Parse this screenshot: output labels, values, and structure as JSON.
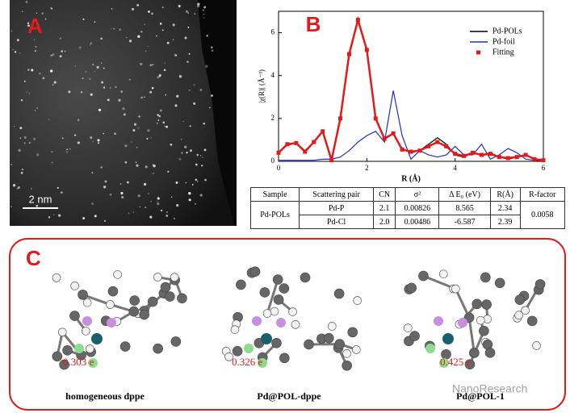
{
  "panel_a": {
    "label": "A",
    "scale_bar": "2 nm"
  },
  "chart_data": {
    "type": "line",
    "label": "B",
    "x_label": "R (Å)",
    "y_label": "|χ(R)| (Å⁻³)",
    "x": [
      0,
      0.2,
      0.4,
      0.6,
      0.8,
      1.0,
      1.2,
      1.4,
      1.6,
      1.8,
      2.0,
      2.2,
      2.4,
      2.6,
      2.8,
      3.0,
      3.2,
      3.4,
      3.6,
      3.8,
      4.0,
      4.2,
      4.4,
      4.6,
      4.8,
      5.0,
      5.2,
      5.4,
      5.6,
      5.8,
      6.0
    ],
    "series": [
      {
        "name": "Pd-POLs",
        "color": "#000000",
        "values": [
          0.4,
          0.75,
          0.85,
          0.5,
          0.9,
          1.4,
          0.1,
          2.0,
          5.0,
          6.6,
          5.2,
          2.0,
          1.1,
          1.3,
          0.6,
          0.4,
          0.5,
          0.8,
          1.1,
          0.8,
          0.3,
          0.2,
          0.4,
          0.3,
          0.4,
          0.2,
          0.1,
          0.2,
          0.3,
          0.1,
          0.05
        ]
      },
      {
        "name": "Pd-foil",
        "color": "#1f2fbf",
        "values": [
          0.05,
          0.05,
          0.05,
          0.05,
          0.05,
          0.1,
          0.1,
          0.2,
          0.5,
          0.9,
          1.2,
          1.4,
          0.9,
          3.3,
          1.2,
          0.1,
          0.5,
          0.3,
          0.2,
          0.3,
          0.7,
          0.3,
          0.3,
          0.8,
          0.1,
          0.3,
          0.6,
          0.4,
          0.1,
          0.05,
          0.02
        ]
      },
      {
        "name": "Fitting",
        "color": "#e31a1a",
        "values": [
          0.4,
          0.8,
          0.85,
          0.45,
          0.9,
          1.4,
          0.05,
          2.0,
          5.0,
          6.6,
          5.2,
          2.0,
          1.05,
          1.3,
          0.55,
          0.45,
          0.5,
          0.7,
          0.9,
          0.7,
          0.35,
          0.25,
          0.4,
          0.3,
          0.35,
          0.2,
          0.15,
          0.2,
          0.3,
          0.1,
          0.05
        ]
      }
    ],
    "xlim": [
      0,
      6
    ],
    "xticks": [
      0,
      2,
      4,
      6
    ],
    "ylim": [
      0,
      7
    ],
    "yticks": [
      0,
      2,
      4,
      6
    ]
  },
  "table": {
    "header": [
      "Sample",
      "Scattering pair",
      "CN",
      "σ²",
      "Δ E₀ (eV)",
      "R(Å)",
      "R-factor"
    ],
    "rows": [
      [
        "Pd-POLs",
        "Pd-P",
        "2.1",
        "0.00826",
        "8.565",
        "2.34",
        "0.0058"
      ],
      [
        "Pd-Cl",
        "2.0",
        "0.00486",
        "-6.587",
        "2.39"
      ]
    ]
  },
  "panel_c": {
    "label": "C",
    "molecules": [
      {
        "charge": "0.303 e",
        "caption": "homogeneous dppe"
      },
      {
        "charge": "0.326 e",
        "caption": "Pd@POL-dppe"
      },
      {
        "charge": "0.425 e",
        "caption": "Pd@POL-1"
      }
    ],
    "watermark": "NanoResearch"
  }
}
